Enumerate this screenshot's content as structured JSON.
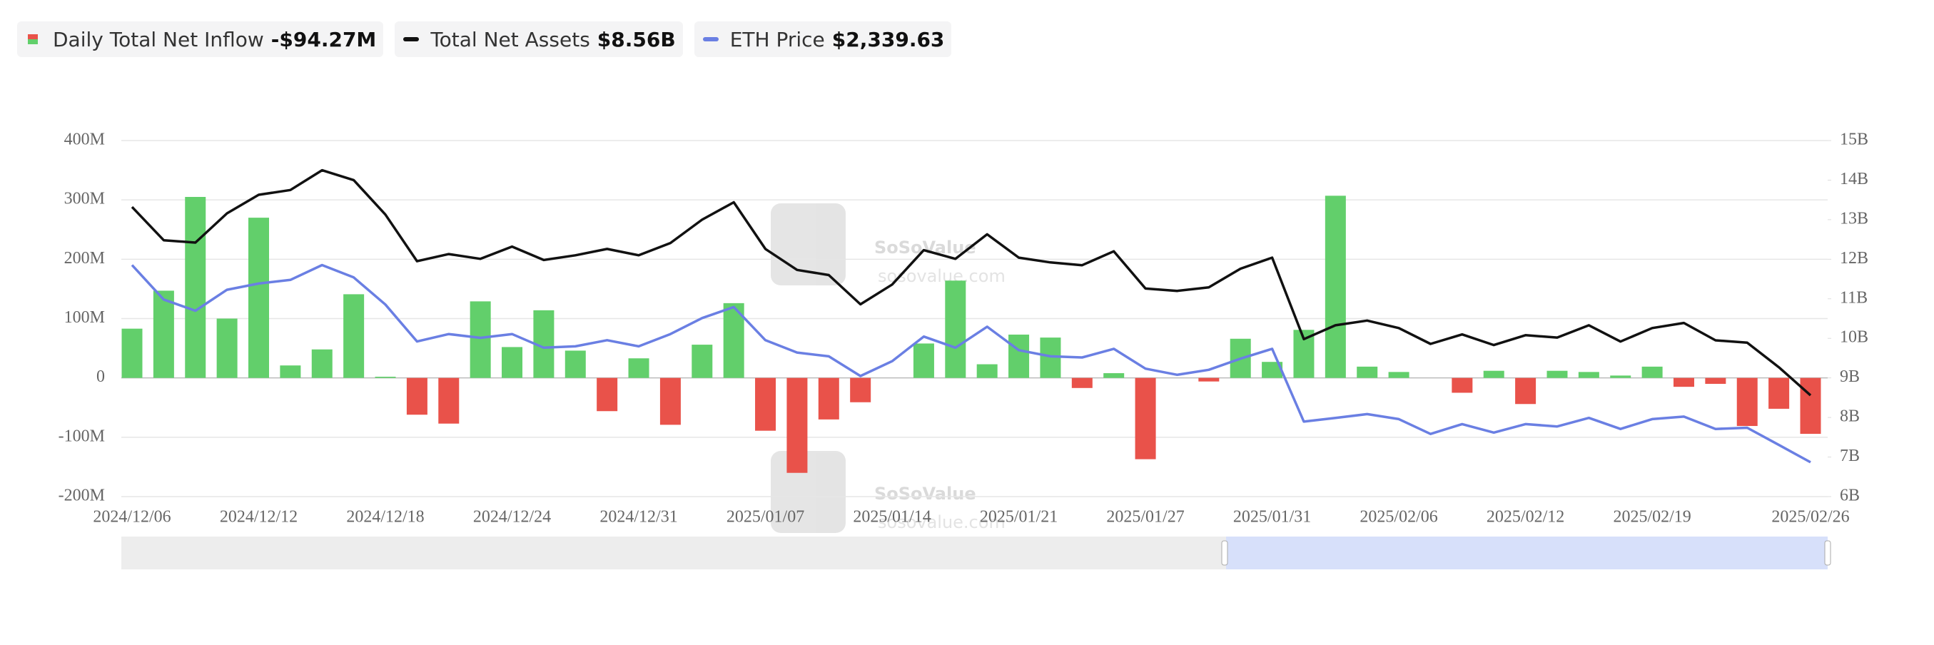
{
  "chart_data": {
    "type": "bar",
    "categories": [
      "2024/12/06",
      null,
      null,
      null,
      "2024/12/12",
      null,
      null,
      null,
      "2024/12/18",
      null,
      null,
      null,
      "2024/12/24",
      null,
      null,
      null,
      "2024/12/31",
      null,
      null,
      null,
      "2025/01/07",
      null,
      null,
      null,
      "2025/01/14",
      null,
      null,
      null,
      "2025/01/21",
      null,
      null,
      null,
      "2025/01/27",
      null,
      null,
      null,
      "2025/01/31",
      null,
      null,
      null,
      "2025/02/06",
      null,
      null,
      null,
      "2025/02/12",
      null,
      null,
      null,
      "2025/02/19",
      null,
      null,
      null,
      null,
      "2025/02/26"
    ],
    "series": [
      {
        "name": "Daily Total Net Inflow",
        "latest": "-$94.27M",
        "color": "#62cf6b",
        "negative_color": "#e9524a",
        "values": [
          83,
          147,
          305,
          100,
          270,
          21,
          48,
          141,
          2,
          -62,
          -77,
          129,
          52,
          114,
          46,
          -56,
          33,
          -79,
          56,
          126,
          -89,
          -160,
          -70,
          -41,
          0,
          58,
          164,
          23,
          73,
          68,
          -17,
          8,
          -137,
          0,
          -6,
          66,
          27,
          81,
          307,
          19,
          10,
          0,
          -25,
          12,
          -44,
          12,
          10,
          4,
          19,
          -15,
          -10,
          -81,
          -52,
          -94.27
        ]
      },
      {
        "name": "Total Net Assets",
        "latest": "$8.56B",
        "color": "#111111",
        "axis": "y2",
        "values": [
          13.32,
          12.48,
          12.42,
          13.16,
          13.63,
          13.75,
          14.25,
          14.0,
          13.13,
          11.95,
          12.13,
          12.01,
          12.32,
          11.98,
          12.1,
          12.26,
          12.1,
          12.41,
          13.0,
          13.44,
          12.26,
          11.73,
          11.6,
          10.86,
          11.36,
          12.23,
          12.01,
          12.63,
          12.04,
          11.92,
          11.85,
          12.2,
          11.26,
          11.2,
          11.29,
          11.76,
          12.04,
          9.98,
          10.33,
          10.45,
          10.26,
          9.86,
          10.1,
          9.83,
          10.08,
          10.02,
          10.33,
          9.92,
          10.26,
          10.39,
          9.95,
          9.89,
          9.27,
          8.56
        ]
      },
      {
        "name": "ETH Price",
        "latest": "$2,339.63",
        "color": "#6a7fe3",
        "axis": "y3",
        "values": [
          4004,
          3713,
          3619,
          3796,
          3848,
          3879,
          4004,
          3900,
          3671,
          3359,
          3422,
          3390,
          3422,
          3307,
          3318,
          3370,
          3318,
          3422,
          3557,
          3650,
          3370,
          3266,
          3234,
          3068,
          3193,
          3401,
          3307,
          3484,
          3286,
          3234,
          3224,
          3297,
          3130,
          3078,
          3120,
          3214,
          3297,
          2683,
          2714,
          2746,
          2704,
          2579,
          2662,
          2590,
          2662,
          2642,
          2714,
          2621,
          2704,
          2725,
          2621,
          2631,
          2486,
          2339.63
        ]
      }
    ],
    "ylim": [
      -200,
      400
    ],
    "yticks": [
      {
        "value": -200,
        "label": "-200M"
      },
      {
        "value": -100,
        "label": "-100M"
      },
      0,
      {
        "value": 100,
        "label": "100M"
      },
      {
        "value": 200,
        "label": "200M"
      },
      {
        "value": 300,
        "label": "300M"
      },
      {
        "value": 400,
        "label": "400M"
      }
    ],
    "y2lim": [
      6,
      15
    ],
    "y2ticks": [
      {
        "value": 6,
        "label": "6B"
      },
      {
        "value": 7,
        "label": "7B"
      },
      {
        "value": 8,
        "label": "8B"
      },
      {
        "value": 9,
        "label": "9B"
      },
      {
        "value": 10,
        "label": "10B"
      },
      {
        "value": 11,
        "label": "11B"
      },
      {
        "value": 12,
        "label": "12B"
      },
      {
        "value": 13,
        "label": "13B"
      },
      {
        "value": 14,
        "label": "14B"
      },
      {
        "value": 15,
        "label": "15B"
      }
    ],
    "y3lim": [
      2050,
      5055
    ],
    "grid": true,
    "watermark": "SoSoValue",
    "watermark_url": "sosovalue.com"
  }
}
